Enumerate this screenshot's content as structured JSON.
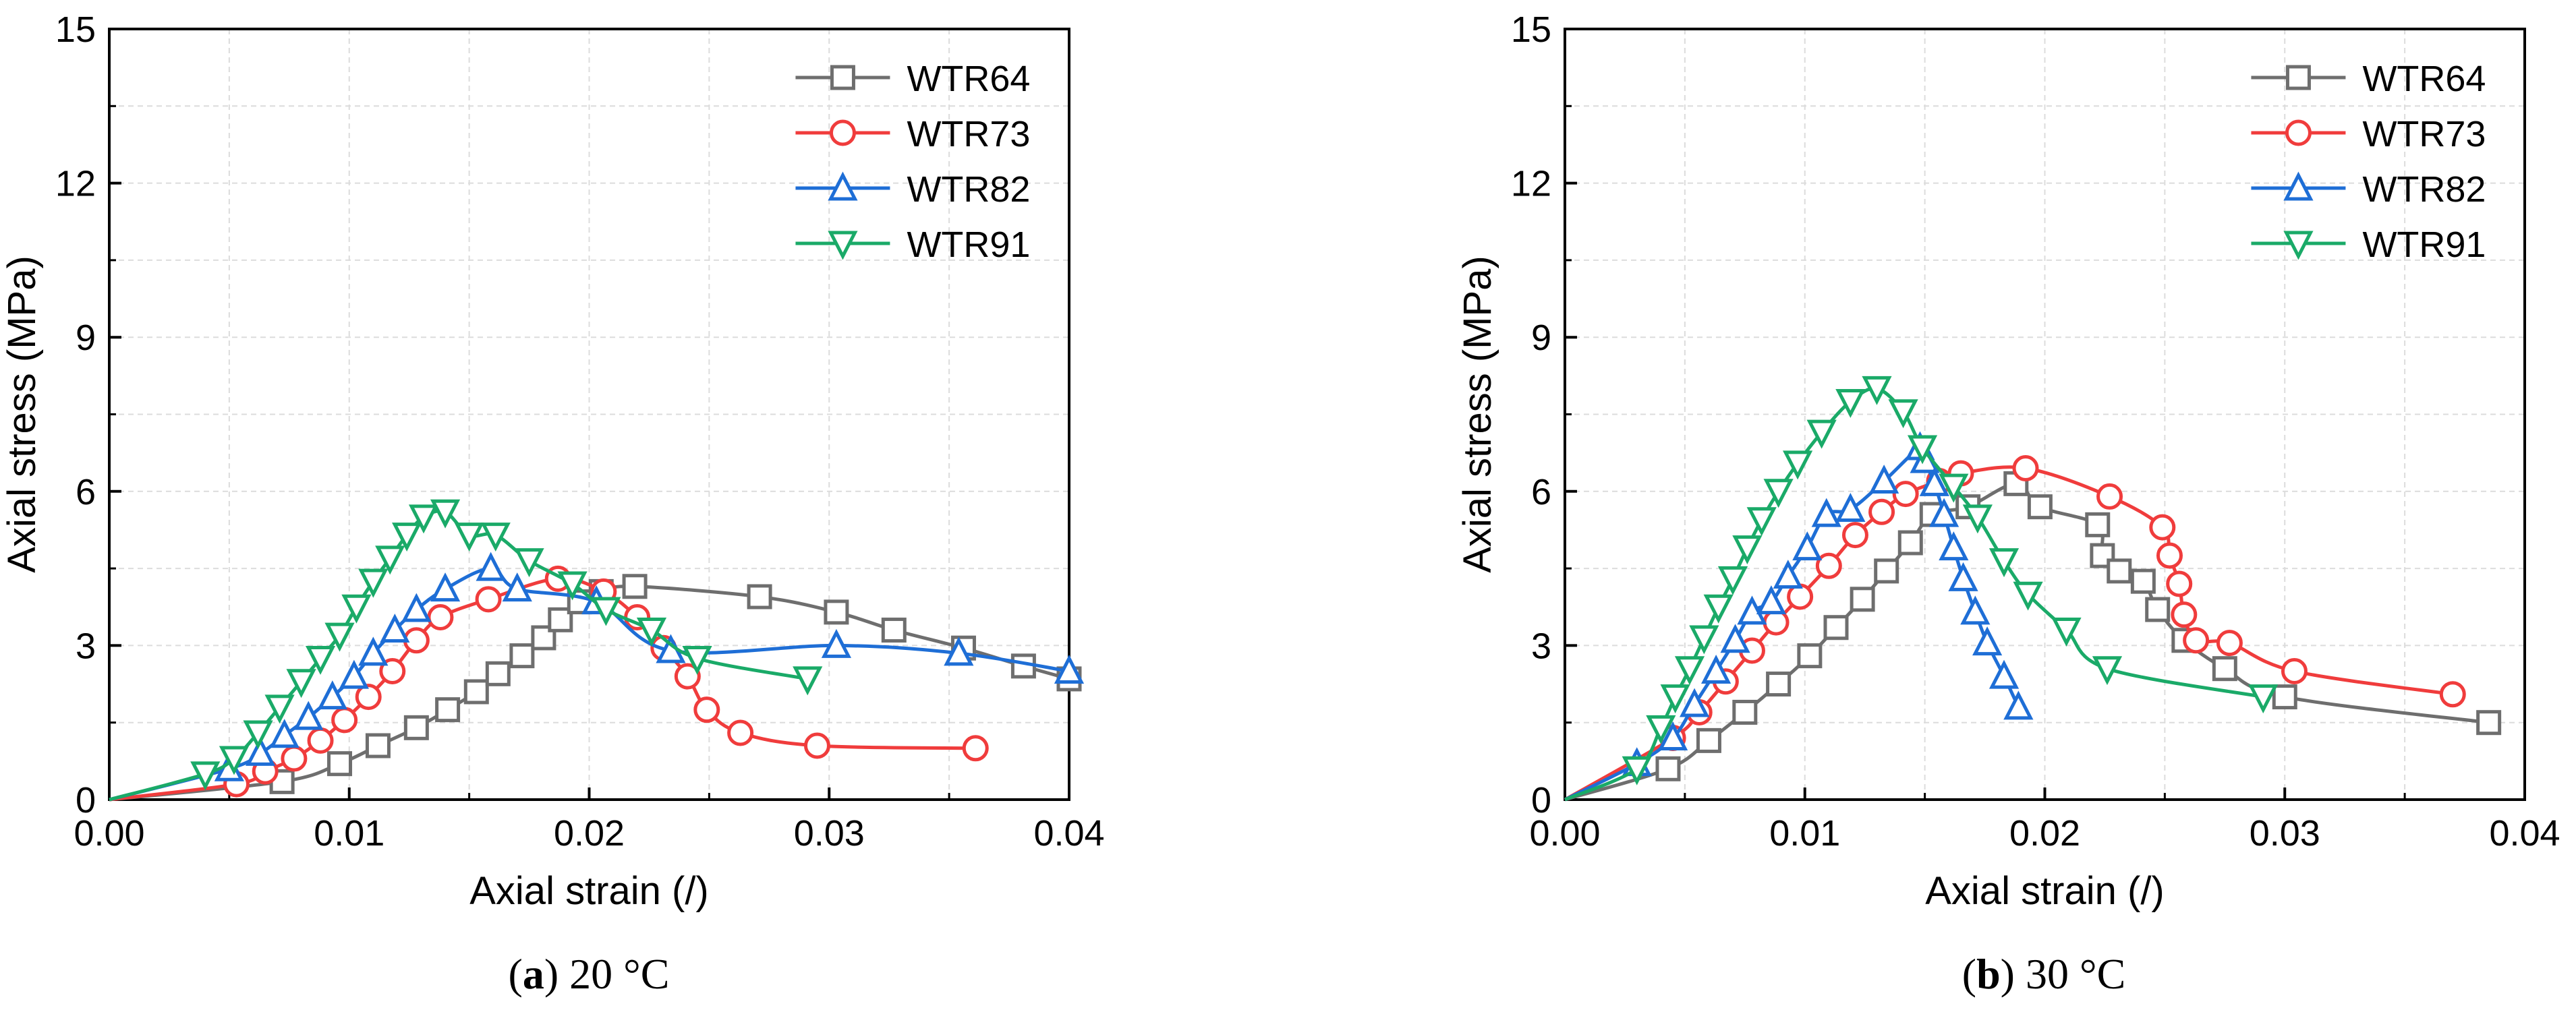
{
  "chart_data": [
    {
      "type": "line",
      "panel_letter": "a",
      "caption": " 20 °C",
      "xlabel": "Axial strain (/)",
      "ylabel": "Axial stress (MPa)",
      "xlim": [
        0,
        0.04
      ],
      "ylim": [
        0,
        15
      ],
      "xticks": [
        "0.00",
        "0.01",
        "0.02",
        "0.03",
        "0.04"
      ],
      "yticks": [
        "0",
        "3",
        "6",
        "9",
        "12",
        "15"
      ],
      "grid": true,
      "legend": "top-right",
      "series": [
        {
          "name": "WTR64",
          "color": "#6e6e6e",
          "marker": "square",
          "x": [
            0.0,
            0.0072,
            0.0096,
            0.0112,
            0.0128,
            0.0141,
            0.0153,
            0.0162,
            0.0172,
            0.0181,
            0.0188,
            0.0196,
            0.0205,
            0.0219,
            0.0271,
            0.0303,
            0.0327,
            0.0356,
            0.0381,
            0.04
          ],
          "y": [
            0.0,
            0.35,
            0.7,
            1.05,
            1.4,
            1.75,
            2.1,
            2.45,
            2.8,
            3.15,
            3.5,
            3.85,
            4.05,
            4.15,
            3.95,
            3.65,
            3.3,
            2.95,
            2.6,
            2.35
          ]
        },
        {
          "name": "WTR73",
          "color": "#f03c3c",
          "marker": "circle",
          "x": [
            0.0,
            0.0053,
            0.0065,
            0.0077,
            0.0088,
            0.0098,
            0.0108,
            0.0118,
            0.0128,
            0.0138,
            0.0158,
            0.0187,
            0.0206,
            0.022,
            0.0231,
            0.0241,
            0.0249,
            0.0263,
            0.0295,
            0.0361
          ],
          "y": [
            0.0,
            0.3,
            0.55,
            0.8,
            1.15,
            1.55,
            2.0,
            2.5,
            3.1,
            3.55,
            3.9,
            4.3,
            4.05,
            3.55,
            2.95,
            2.4,
            1.75,
            1.3,
            1.05,
            1.0
          ]
        },
        {
          "name": "WTR82",
          "color": "#1e6ed6",
          "marker": "triangle-up",
          "x": [
            0.0,
            0.005,
            0.0063,
            0.0073,
            0.0083,
            0.0093,
            0.0102,
            0.011,
            0.0119,
            0.0128,
            0.014,
            0.0159,
            0.017,
            0.0203,
            0.0234,
            0.0303,
            0.0354,
            0.04
          ],
          "y": [
            0.0,
            0.6,
            0.9,
            1.25,
            1.6,
            2.0,
            2.4,
            2.85,
            3.3,
            3.7,
            4.1,
            4.5,
            4.1,
            3.85,
            2.9,
            3.0,
            2.85,
            2.5
          ]
        },
        {
          "name": "WTR91",
          "color": "#1aaa68",
          "marker": "triangle-down",
          "x": [
            0.0,
            0.004,
            0.0052,
            0.0062,
            0.0071,
            0.008,
            0.0088,
            0.0096,
            0.0103,
            0.011,
            0.0117,
            0.0124,
            0.0131,
            0.014,
            0.015,
            0.0161,
            0.0175,
            0.0193,
            0.0207,
            0.0226,
            0.0245,
            0.0291
          ],
          "y": [
            0.0,
            0.5,
            0.8,
            1.3,
            1.8,
            2.3,
            2.75,
            3.2,
            3.75,
            4.25,
            4.7,
            5.15,
            5.5,
            5.6,
            5.15,
            5.15,
            4.65,
            4.2,
            3.7,
            3.3,
            2.75,
            2.35
          ]
        }
      ]
    },
    {
      "type": "line",
      "panel_letter": "b",
      "caption": " 30 °C",
      "xlabel": "Axial strain (/)",
      "ylabel": "Axial stress (MPa)",
      "xlim": [
        0,
        0.04
      ],
      "ylim": [
        0,
        15
      ],
      "xticks": [
        "0.00",
        "0.01",
        "0.02",
        "0.03",
        "0.04"
      ],
      "yticks": [
        "0",
        "3",
        "6",
        "9",
        "12",
        "15"
      ],
      "grid": true,
      "legend": "top-right",
      "series": [
        {
          "name": "WTR64",
          "color": "#6e6e6e",
          "marker": "square",
          "x": [
            0.0,
            0.0043,
            0.006,
            0.0075,
            0.0089,
            0.0102,
            0.0113,
            0.0124,
            0.0134,
            0.0144,
            0.0153,
            0.0168,
            0.0188,
            0.0198,
            0.0222,
            0.0224,
            0.0231,
            0.0241,
            0.0247,
            0.0258,
            0.0275,
            0.03,
            0.0385
          ],
          "y": [
            0.0,
            0.6,
            1.15,
            1.7,
            2.25,
            2.8,
            3.35,
            3.9,
            4.45,
            5.0,
            5.55,
            5.7,
            6.15,
            5.7,
            5.35,
            4.75,
            4.45,
            4.25,
            3.7,
            3.1,
            2.55,
            2.0,
            1.5
          ]
        },
        {
          "name": "WTR73",
          "color": "#f03c3c",
          "marker": "circle",
          "x": [
            0.0,
            0.0045,
            0.0056,
            0.0067,
            0.0078,
            0.0088,
            0.0098,
            0.011,
            0.0121,
            0.0132,
            0.0142,
            0.0156,
            0.0165,
            0.0192,
            0.0227,
            0.0249,
            0.0252,
            0.0256,
            0.0258,
            0.0263,
            0.0277,
            0.0304,
            0.037
          ],
          "y": [
            0.0,
            1.2,
            1.7,
            2.3,
            2.9,
            3.45,
            3.95,
            4.55,
            5.15,
            5.6,
            5.95,
            6.2,
            6.35,
            6.45,
            5.9,
            5.3,
            4.75,
            4.2,
            3.6,
            3.1,
            3.05,
            2.5,
            2.05
          ]
        },
        {
          "name": "WTR82",
          "color": "#1e6ed6",
          "marker": "triangle-up",
          "x": [
            0.0,
            0.003,
            0.0045,
            0.0054,
            0.0063,
            0.0071,
            0.0078,
            0.0086,
            0.0093,
            0.0101,
            0.0109,
            0.0119,
            0.0133,
            0.0148,
            0.015,
            0.0154,
            0.0158,
            0.0162,
            0.0166,
            0.0171,
            0.0176,
            0.0183,
            0.0189
          ],
          "y": [
            0.0,
            0.7,
            1.2,
            1.85,
            2.5,
            3.1,
            3.65,
            3.85,
            4.35,
            4.9,
            5.55,
            5.65,
            6.2,
            6.85,
            6.6,
            6.15,
            5.55,
            4.9,
            4.3,
            3.65,
            3.05,
            2.4,
            1.8
          ]
        },
        {
          "name": "WTR91",
          "color": "#1aaa68",
          "marker": "triangle-down",
          "x": [
            0.0,
            0.003,
            0.004,
            0.0046,
            0.0052,
            0.0058,
            0.0064,
            0.007,
            0.0076,
            0.0082,
            0.0089,
            0.0097,
            0.0107,
            0.0119,
            0.013,
            0.0141,
            0.0149,
            0.0162,
            0.0172,
            0.0183,
            0.0193,
            0.0209,
            0.0226,
            0.0291
          ],
          "y": [
            0.0,
            0.6,
            1.4,
            2.0,
            2.55,
            3.15,
            3.75,
            4.3,
            4.9,
            5.45,
            6.0,
            6.55,
            7.15,
            7.75,
            8.0,
            7.55,
            6.85,
            6.1,
            5.5,
            4.65,
            4.0,
            3.3,
            2.55,
            2.0
          ]
        }
      ]
    }
  ]
}
